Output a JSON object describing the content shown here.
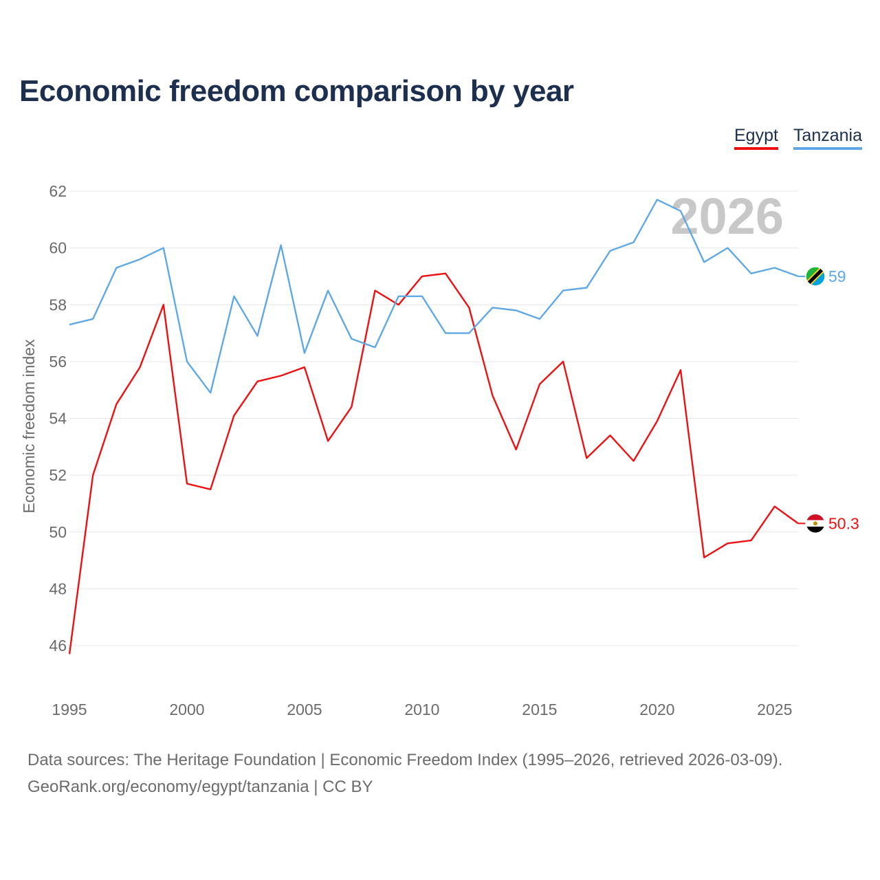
{
  "title": "Economic freedom comparison by year",
  "legend": [
    {
      "label": "Egypt",
      "color": "#ee0f10"
    },
    {
      "label": "Tanzania",
      "color": "#5fa8e6"
    }
  ],
  "watermark_year": "2026",
  "footer": {
    "line1": "Data sources: The Heritage Foundation | Economic Freedom Index (1995–2026, retrieved 2026-03-09).",
    "line2": "GeoRank.org/economy/egypt/tanzania | CC BY"
  },
  "chart_data": {
    "type": "line",
    "title": "Economic freedom comparison by year",
    "xlabel": "",
    "ylabel": "Economic freedom index",
    "xlim": [
      1995,
      2026
    ],
    "ylim": [
      45,
      63
    ],
    "x_ticks": [
      1995,
      2000,
      2005,
      2010,
      2015,
      2020,
      2025
    ],
    "y_ticks": [
      46,
      48,
      50,
      52,
      54,
      56,
      58,
      60,
      62
    ],
    "grid": true,
    "legend_position": "top-right",
    "x": [
      1995,
      1996,
      1997,
      1998,
      1999,
      2000,
      2001,
      2002,
      2003,
      2004,
      2005,
      2006,
      2007,
      2008,
      2009,
      2010,
      2011,
      2012,
      2013,
      2014,
      2015,
      2016,
      2017,
      2018,
      2019,
      2020,
      2021,
      2022,
      2023,
      2024,
      2025,
      2026
    ],
    "series": [
      {
        "name": "Egypt",
        "color": "#ee0f10",
        "end_label": "50.3",
        "flag": "egypt-flag",
        "values": [
          45.7,
          52.0,
          54.5,
          55.8,
          58.0,
          51.7,
          51.5,
          54.1,
          55.3,
          55.5,
          55.8,
          53.2,
          54.4,
          58.5,
          58.0,
          59.0,
          59.1,
          57.9,
          54.8,
          52.9,
          55.2,
          56.0,
          52.6,
          53.4,
          52.5,
          53.9,
          55.7,
          49.1,
          49.6,
          49.7,
          50.9,
          50.3
        ]
      },
      {
        "name": "Tanzania",
        "color": "#5fa8e6",
        "end_label": "59",
        "flag": "tanzania-flag",
        "values": [
          57.3,
          57.5,
          59.3,
          59.6,
          60.0,
          56.0,
          54.9,
          58.3,
          56.9,
          60.1,
          56.3,
          58.5,
          56.8,
          56.5,
          58.3,
          58.3,
          57.0,
          57.0,
          57.9,
          57.8,
          57.5,
          58.5,
          58.6,
          59.9,
          60.2,
          61.7,
          61.3,
          59.5,
          60.0,
          59.1,
          59.3,
          59.0
        ]
      }
    ]
  }
}
